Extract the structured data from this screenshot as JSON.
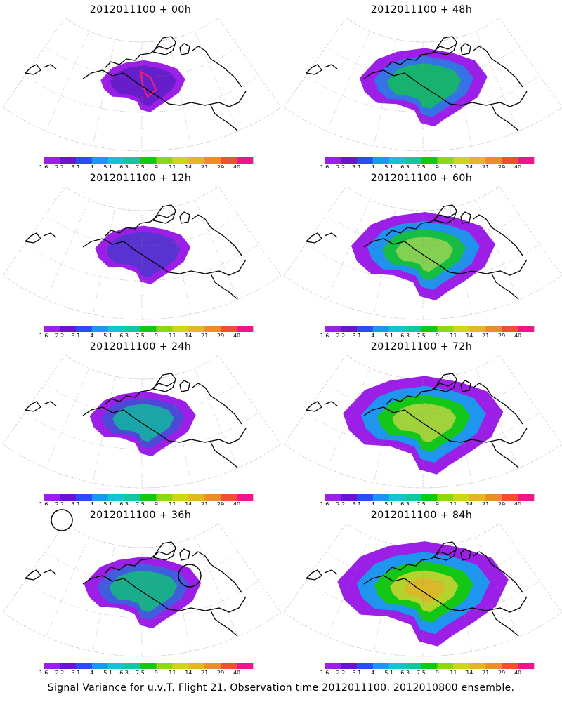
{
  "panels": [
    {
      "title": "2012011100 + 00h",
      "intensity": 0.05
    },
    {
      "title": "2012011100 + 48h",
      "intensity": 0.45
    },
    {
      "title": "2012011100 + 12h",
      "intensity": 0.15
    },
    {
      "title": "2012011100 + 60h",
      "intensity": 0.6
    },
    {
      "title": "2012011100 + 24h",
      "intensity": 0.25
    },
    {
      "title": "2012011100 + 72h",
      "intensity": 0.75
    },
    {
      "title": "2012011100 + 36h",
      "intensity": 0.35
    },
    {
      "title": "2012011100 + 84h",
      "intensity": 0.85
    }
  ],
  "colorbar": {
    "labels": [
      "1.6",
      "2.2",
      "3.1",
      "4",
      "5.1",
      "6.3",
      "7.5",
      "9",
      "11",
      "14",
      "21",
      "29",
      "40"
    ],
    "colors": [
      "#9b1fe6",
      "#6c14c8",
      "#2b4cf0",
      "#1e96f0",
      "#13c3d3",
      "#14c6a0",
      "#12c812",
      "#8dd816",
      "#cfd61a",
      "#e6b42a",
      "#ea8c30",
      "#ef5030",
      "#f0148a"
    ]
  },
  "footer": "Signal Variance for u,v,T. Flight 21. Observation time 2012011100. 2012010800 ensemble."
}
